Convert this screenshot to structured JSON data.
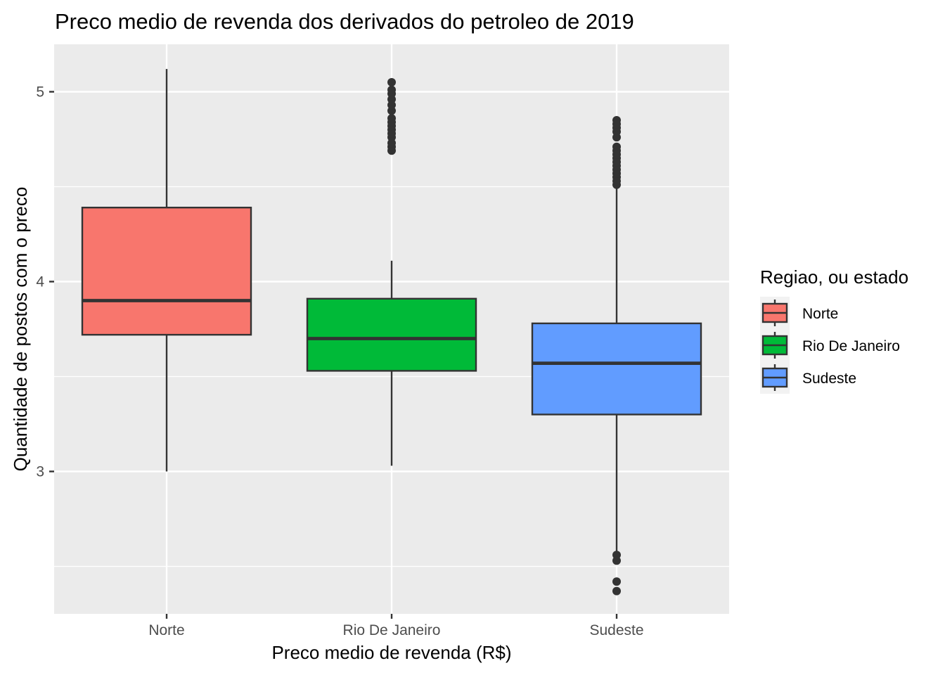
{
  "chart_data": {
    "type": "boxplot",
    "title": "Preco medio de revenda dos derivados do petroleo de 2019",
    "xlabel": "Preco medio de revenda (R$)",
    "ylabel": "Quantidade de postos com o preco",
    "ylim": [
      2.25,
      5.25
    ],
    "y_ticks": [
      3,
      4,
      5
    ],
    "y_minor_gridlines": [
      2.5,
      3.5,
      4.5
    ],
    "grid": true,
    "background": "#ebebeb",
    "legend": {
      "title": "Regiao, ou estado",
      "position": "right"
    },
    "categories": [
      "Norte",
      "Rio De Janeiro",
      "Sudeste"
    ],
    "series": [
      {
        "name": "Norte",
        "color": "#f8766d",
        "whisker_low": 3.0,
        "q1": 3.72,
        "median": 3.9,
        "q3": 4.39,
        "whisker_high": 5.12,
        "outliers": []
      },
      {
        "name": "Rio De Janeiro",
        "color": "#00ba38",
        "whisker_low": 3.03,
        "q1": 3.53,
        "median": 3.7,
        "q3": 3.91,
        "whisker_high": 4.11,
        "outliers": [
          4.69,
          4.71,
          4.73,
          4.76,
          4.78,
          4.8,
          4.82,
          4.84,
          4.86,
          4.9,
          4.93,
          4.96,
          4.99,
          5.01,
          5.05
        ]
      },
      {
        "name": "Sudeste",
        "color": "#619cff",
        "whisker_low": 2.55,
        "q1": 3.3,
        "median": 3.57,
        "q3": 3.78,
        "whisker_high": 4.5,
        "outliers": [
          2.37,
          2.42,
          2.53,
          2.56,
          4.51,
          4.53,
          4.55,
          4.57,
          4.59,
          4.61,
          4.63,
          4.65,
          4.67,
          4.69,
          4.71,
          4.76,
          4.79,
          4.81,
          4.83,
          4.85
        ]
      }
    ]
  }
}
